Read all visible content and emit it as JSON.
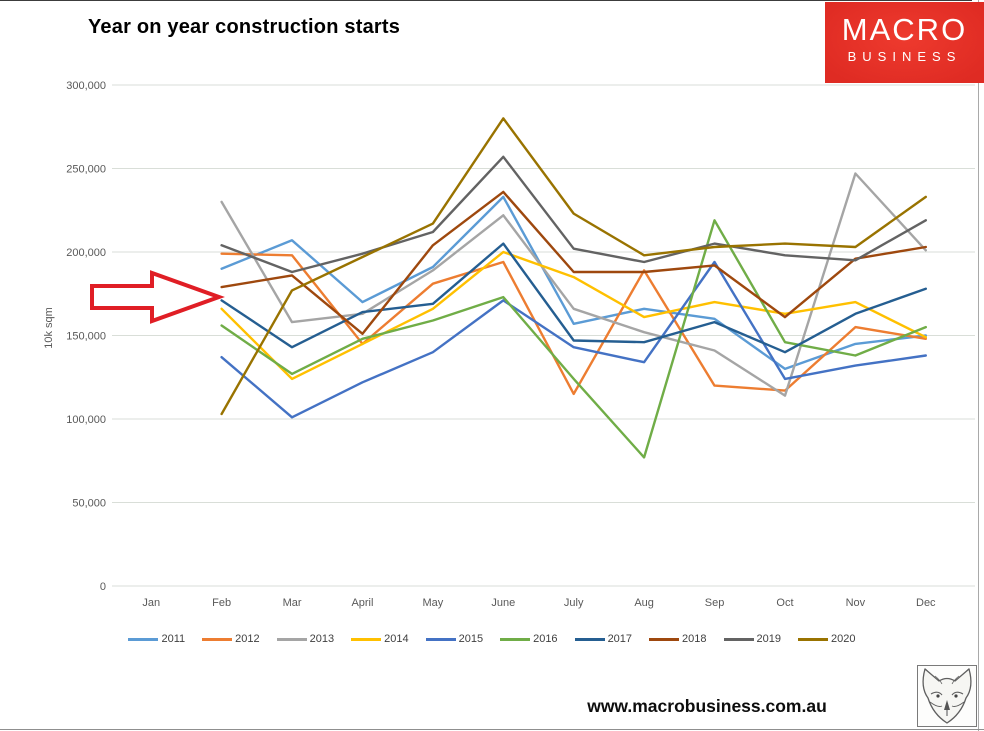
{
  "title": "Year on year construction starts",
  "logo": {
    "line1": "MACRO",
    "line2": "BUSINESS",
    "bg_color": "#e2332a"
  },
  "footer": {
    "url": "www.macrobusiness.com.au",
    "fox_logo": "fox-head-sketch"
  },
  "y_axis": {
    "title": "10k sqm",
    "tick_labels": [
      "300,000",
      "250,000",
      "200,000",
      "150,000",
      "100,000",
      "50,000",
      "0"
    ]
  },
  "annotation": {
    "type": "block-arrow",
    "color": "#e01e25",
    "points_at": "2018 series start at Feb (~175,000)"
  },
  "chart_data": {
    "type": "line",
    "title": "Year on year construction starts",
    "ylabel": "10k sqm",
    "ylim": [
      0,
      300000
    ],
    "grid": true,
    "legend_position": "bottom",
    "categories": [
      "Jan",
      "Feb",
      "Mar",
      "April",
      "May",
      "June",
      "July",
      "Aug",
      "Sep",
      "Oct",
      "Nov",
      "Dec"
    ],
    "series": [
      {
        "name": "2011",
        "color": "#5B9BD5",
        "values": [
          null,
          190000,
          207000,
          170000,
          191000,
          233000,
          157000,
          166000,
          160000,
          130000,
          145000,
          150000
        ]
      },
      {
        "name": "2012",
        "color": "#ED7D31",
        "values": [
          null,
          199000,
          198000,
          145000,
          181000,
          194000,
          115000,
          189000,
          120000,
          117000,
          155000,
          148000
        ]
      },
      {
        "name": "2013",
        "color": "#A5A5A5",
        "values": [
          null,
          230000,
          158000,
          163000,
          189000,
          222000,
          166000,
          152000,
          141000,
          114000,
          247000,
          201000
        ]
      },
      {
        "name": "2014",
        "color": "#FFC000",
        "values": [
          null,
          166000,
          124000,
          145000,
          166000,
          200000,
          185000,
          161000,
          170000,
          163000,
          170000,
          149000
        ]
      },
      {
        "name": "2015",
        "color": "#4472C4",
        "values": [
          null,
          137000,
          101000,
          122000,
          140000,
          171000,
          143000,
          134000,
          194000,
          124000,
          132000,
          138000
        ]
      },
      {
        "name": "2016",
        "color": "#70AD47",
        "values": [
          null,
          156000,
          127000,
          148000,
          159000,
          173000,
          124000,
          77000,
          219000,
          146000,
          138000,
          155000
        ]
      },
      {
        "name": "2017",
        "color": "#255E91",
        "values": [
          null,
          171000,
          143000,
          164000,
          169000,
          205000,
          147000,
          146000,
          158000,
          140000,
          163000,
          178000
        ]
      },
      {
        "name": "2018",
        "color": "#9E480E",
        "values": [
          null,
          179000,
          186000,
          151000,
          204000,
          236000,
          188000,
          188000,
          192000,
          161000,
          196000,
          203000
        ]
      },
      {
        "name": "2019",
        "color": "#636363",
        "values": [
          null,
          204000,
          188000,
          199000,
          212000,
          257000,
          202000,
          194000,
          205000,
          198000,
          195000,
          219000
        ]
      },
      {
        "name": "2020",
        "color": "#997300",
        "values": [
          null,
          103000,
          177000,
          197000,
          217000,
          280000,
          223000,
          198000,
          203000,
          205000,
          203000,
          233000
        ]
      }
    ]
  }
}
